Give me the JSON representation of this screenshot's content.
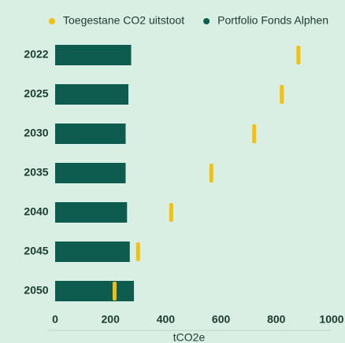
{
  "chart_data": {
    "type": "bar",
    "orientation": "horizontal",
    "categories": [
      "2022",
      "2025",
      "2030",
      "2035",
      "2040",
      "2045",
      "2050"
    ],
    "series": [
      {
        "name": "Toegestane CO2 uitstoot",
        "color": "#f2c10f",
        "type": "marker",
        "values": [
          880,
          820,
          720,
          565,
          420,
          300,
          215
        ]
      },
      {
        "name": "Portfolio Fonds Alphen",
        "color": "#0d5c4f",
        "type": "bar",
        "values": [
          275,
          265,
          255,
          255,
          260,
          270,
          285
        ]
      }
    ],
    "xlabel": "tCO2e",
    "xlim": [
      0,
      1000
    ],
    "xticks": [
      0,
      200,
      400,
      600,
      800,
      1000
    ],
    "legend": "top",
    "grid": false
  }
}
